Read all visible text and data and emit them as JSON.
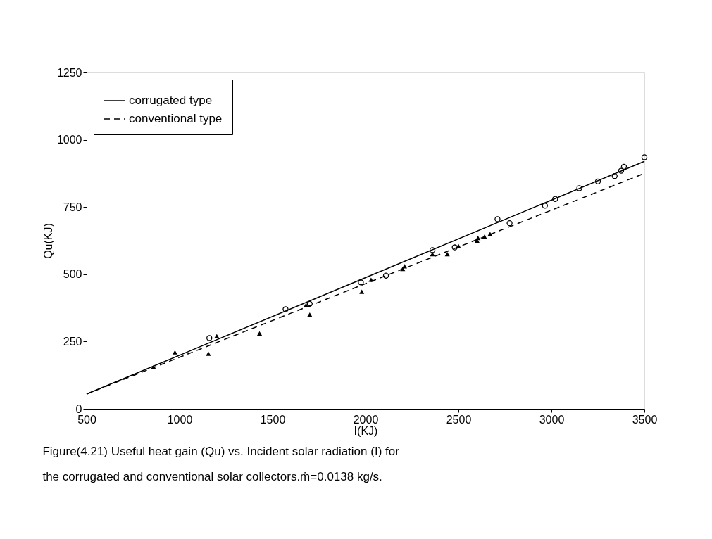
{
  "chart_data": {
    "type": "line",
    "xlabel": "I(KJ)",
    "ylabel": "Qu(KJ)",
    "annotations": [
      "Figure(4.21) Useful heat gain (Qu) vs. Incident solar radiation (I) for",
      "the corrugated and conventional solar collectors.ṁ=0.0138 kg/s."
    ],
    "xlim": [
      500,
      3500
    ],
    "xticks": [
      500,
      1000,
      1500,
      2000,
      2500,
      3000,
      3500
    ],
    "ylim": [
      0,
      1250
    ],
    "yticks": [
      0,
      250,
      500,
      750,
      1000,
      1250
    ],
    "grid": false,
    "legend": "top left",
    "series": [
      {
        "name": "corrugated type",
        "line_style": "solid",
        "color": "#000000",
        "x": [
          500,
          3500
        ],
        "values": [
          55,
          920
        ]
      },
      {
        "name": "conventional type",
        "line_style": "dashed",
        "color": "#000000",
        "x": [
          500,
          3500
        ],
        "values": [
          55,
          875
        ]
      },
      {
        "type": "scatter",
        "marker": "circle",
        "color": "#000000",
        "x": [
          1160,
          1570,
          1700,
          1975,
          2110,
          2360,
          2480,
          2710,
          2775,
          2965,
          3020,
          3150,
          3250,
          3340,
          3375,
          3390,
          3500
        ],
        "values": [
          263,
          370,
          390,
          470,
          495,
          590,
          600,
          705,
          690,
          755,
          780,
          820,
          845,
          865,
          885,
          900,
          935
        ]
      },
      {
        "type": "scatter",
        "marker": "triangle",
        "color": "#000000",
        "x": [
          860,
          975,
          1155,
          1200,
          1430,
          1680,
          1700,
          1980,
          2030,
          2200,
          2210,
          2360,
          2440,
          2500,
          2600,
          2605,
          2640,
          2670
        ],
        "values": [
          155,
          210,
          205,
          270,
          280,
          385,
          350,
          435,
          480,
          520,
          530,
          575,
          575,
          605,
          625,
          635,
          640,
          650
        ]
      }
    ]
  }
}
